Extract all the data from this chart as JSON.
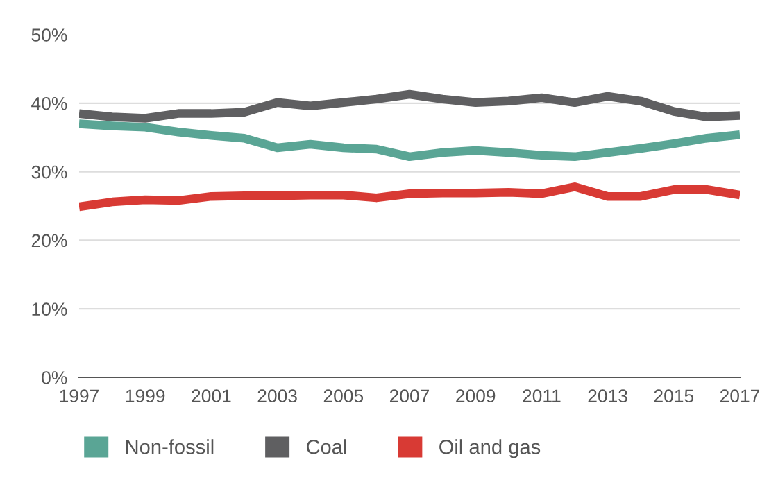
{
  "chart_data": {
    "type": "line",
    "x": [
      1997,
      1998,
      1999,
      2000,
      2001,
      2002,
      2003,
      2004,
      2005,
      2006,
      2007,
      2008,
      2009,
      2010,
      2011,
      2012,
      2013,
      2014,
      2015,
      2016,
      2017
    ],
    "series": [
      {
        "name": "Non-fossil",
        "color": "#5aa595",
        "values": [
          37.0,
          36.7,
          36.5,
          35.8,
          35.3,
          34.9,
          33.5,
          34.0,
          33.5,
          33.3,
          32.2,
          32.8,
          33.1,
          32.8,
          32.4,
          32.2,
          32.8,
          33.4,
          34.1,
          34.9,
          35.4
        ]
      },
      {
        "name": "Coal",
        "color": "#5f5f61",
        "values": [
          38.5,
          38.0,
          37.8,
          38.5,
          38.5,
          38.7,
          40.1,
          39.6,
          40.1,
          40.6,
          41.3,
          40.6,
          40.1,
          40.3,
          40.8,
          40.1,
          41.0,
          40.3,
          38.8,
          38.0,
          38.2
        ]
      },
      {
        "name": "Oil and gas",
        "color": "#d83a34",
        "values": [
          24.9,
          25.6,
          25.9,
          25.8,
          26.4,
          26.5,
          26.5,
          26.6,
          26.6,
          26.2,
          26.8,
          26.9,
          26.9,
          27.0,
          26.8,
          27.8,
          26.4,
          26.4,
          27.4,
          27.4,
          26.6
        ]
      }
    ],
    "xlim": [
      1997,
      2017
    ],
    "xticks": [
      1997,
      1999,
      2001,
      2003,
      2005,
      2007,
      2009,
      2011,
      2013,
      2015,
      2017
    ],
    "ylim": [
      0,
      50
    ],
    "yticks": [
      {
        "value": 0,
        "label": "0%"
      },
      {
        "value": 10,
        "label": "10%"
      },
      {
        "value": 20,
        "label": "20%"
      },
      {
        "value": 30,
        "label": "30%"
      },
      {
        "value": 40,
        "label": "40%"
      },
      {
        "value": 50,
        "label": "50%"
      }
    ],
    "grid": "y",
    "legend": "bottom",
    "marker": "none",
    "line_style": "solid"
  }
}
